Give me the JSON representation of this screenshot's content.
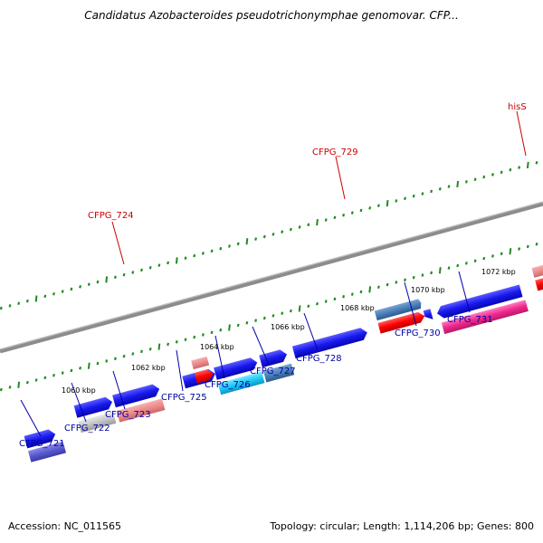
{
  "title": "Candidatus Azobacteroides pseudotrichonymphae genomovar. CFP...",
  "footer": {
    "accession": "Accession: NC_011565",
    "topology": "Topology: circular; Length: 1,114,206 bp; Genes: 800"
  },
  "kbp_labels": [
    "1060 kbp",
    "1062 kbp",
    "1064 kbp",
    "1066 kbp",
    "1068 kbp",
    "1070 kbp",
    "1072 kbp"
  ],
  "genes_top": [
    "CFPG_724",
    "CFPG_729",
    "hisS"
  ],
  "genes_bottom": [
    "CFPG_721",
    "CFPG_722",
    "CFPG_723",
    "CFPG_725",
    "CFPG_726",
    "CFPG_727",
    "CFPG_728",
    "CFPG_730",
    "CFPG_731"
  ],
  "colors": {
    "backbone": "#8c8c8c",
    "ticks": "#228b22",
    "cds_blue": "#1a1ae6",
    "label_blue": "#0000aa",
    "label_red": "#cc0000"
  }
}
